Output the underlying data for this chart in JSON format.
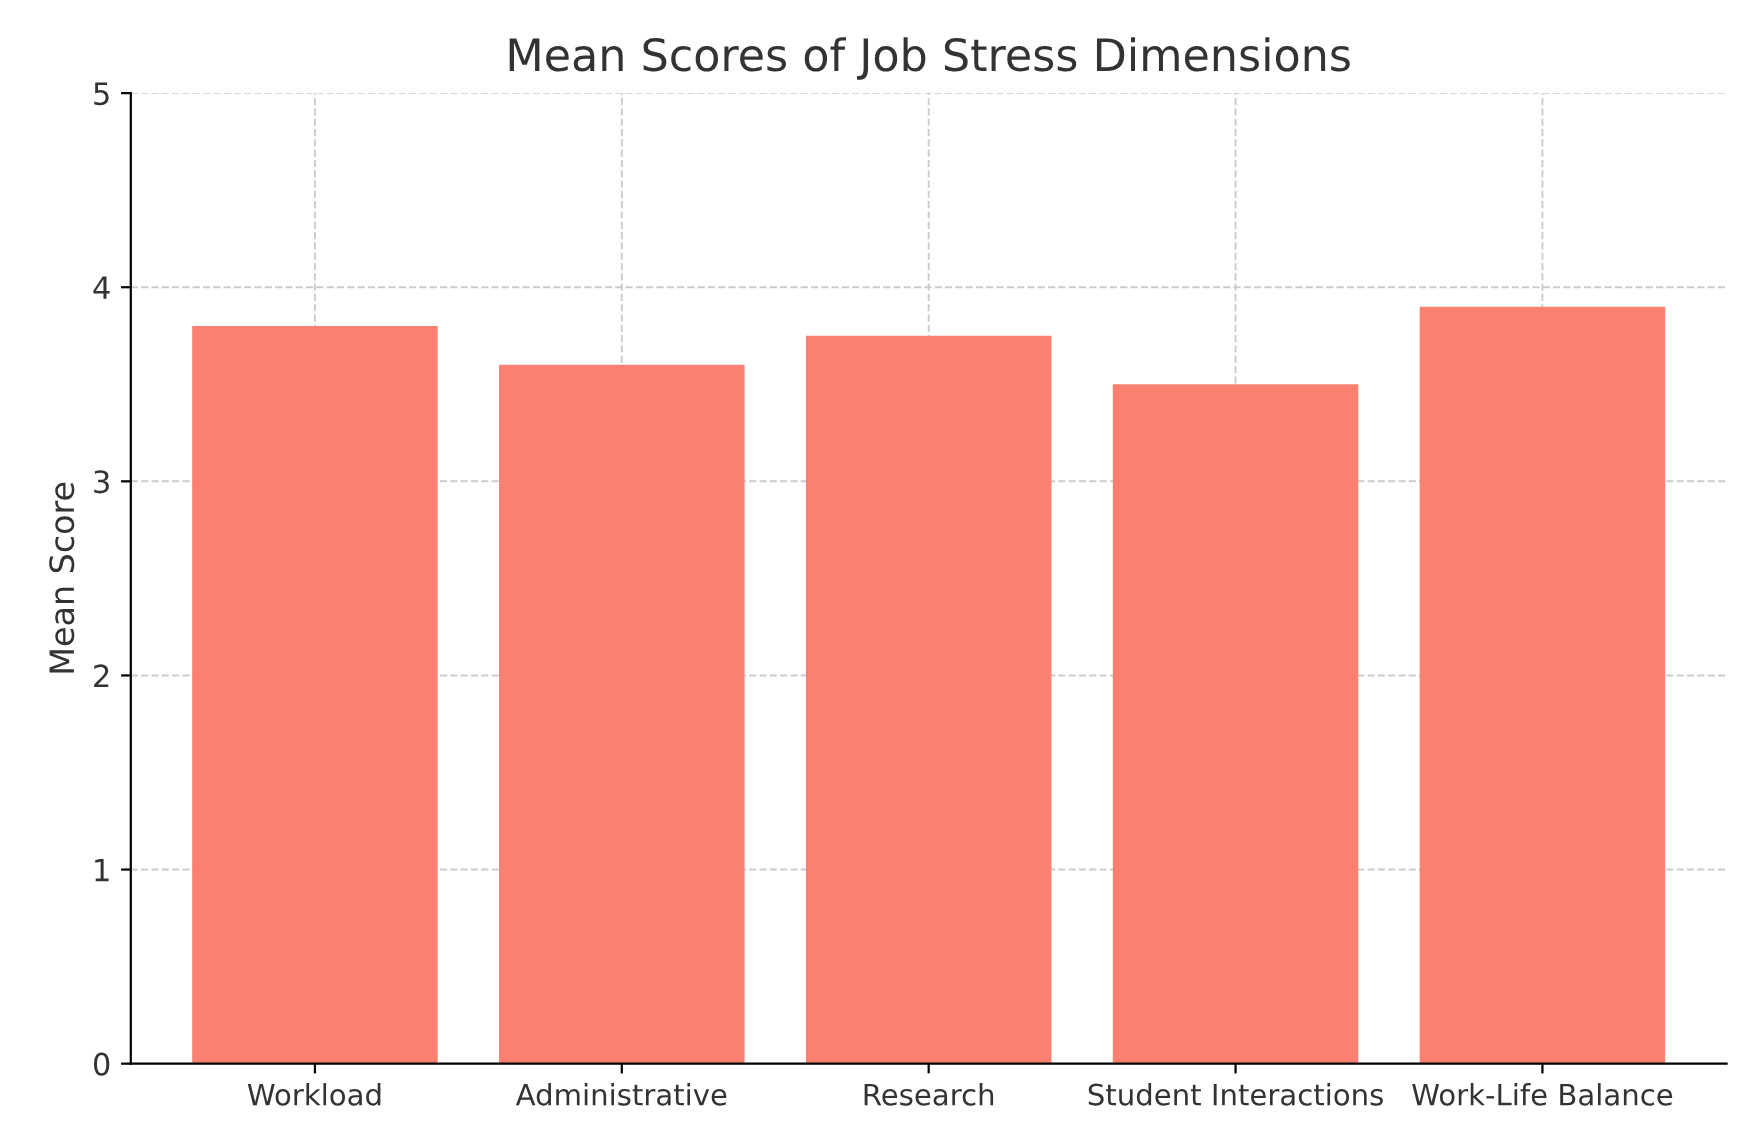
{
  "chart_data": {
    "type": "bar",
    "title": "Mean Scores of Job Stress Dimensions",
    "ylabel": "Mean Score",
    "categories": [
      "Workload",
      "Administrative",
      "Research",
      "Student Interactions",
      "Work-Life Balance"
    ],
    "values": [
      3.8,
      3.6,
      3.75,
      3.5,
      3.9
    ],
    "color": "#fa8072",
    "ylim": [
      0,
      5
    ],
    "yticks": [
      0,
      1,
      2,
      3,
      4,
      5
    ],
    "grid": true
  }
}
